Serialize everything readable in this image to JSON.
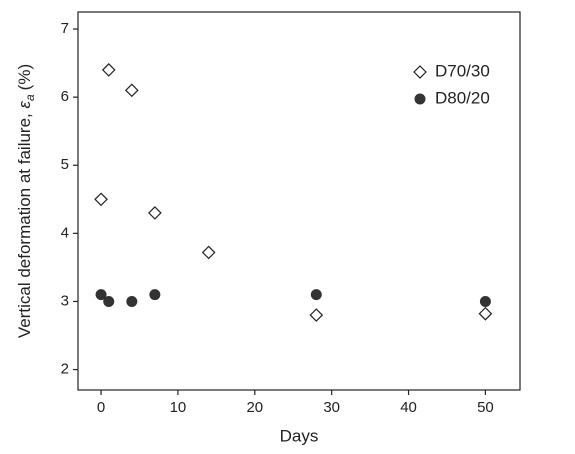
{
  "chart_data": {
    "type": "scatter",
    "x_label": "Days",
    "y_label": {
      "text": "Vertical deformation at failure, ",
      "symbol": "ε",
      "subscript": "a",
      "unit": "(%)"
    },
    "series": [
      {
        "name": "D70/30",
        "color": "#222222",
        "marker": "diamond",
        "filled": false,
        "x": [
          0,
          1,
          4,
          7,
          14,
          28,
          50
        ],
        "values": [
          4.5,
          6.4,
          6.1,
          4.3,
          3.72,
          2.8,
          2.82
        ]
      },
      {
        "name": "D80/20",
        "color": "#333333",
        "marker": "circle",
        "filled": true,
        "x": [
          0,
          1,
          4,
          7,
          28,
          50
        ],
        "values": [
          3.1,
          3.0,
          3.0,
          3.1,
          3.1,
          3.0
        ]
      }
    ],
    "xlim": [
      -3,
      54.5
    ],
    "xticks": [
      0,
      10,
      20,
      30,
      40,
      50
    ],
    "ylim": [
      1.7,
      7.25
    ],
    "yticks": [
      2,
      3,
      4,
      5,
      6,
      7
    ],
    "grid": false,
    "legend": "upper-right"
  }
}
